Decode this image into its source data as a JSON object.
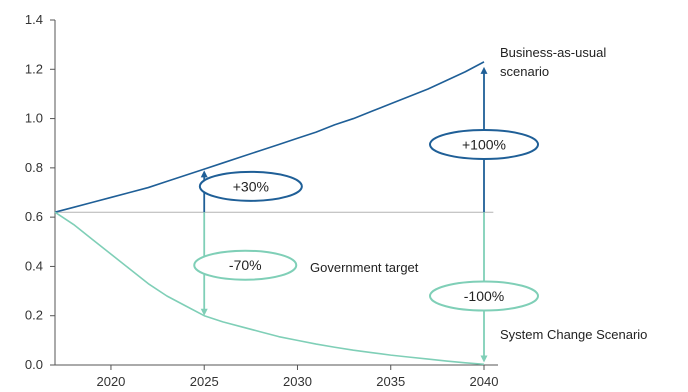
{
  "chart_data": {
    "type": "line",
    "title": "",
    "xlabel": "",
    "ylabel": "",
    "xlim": [
      2017,
      2040
    ],
    "ylim": [
      0,
      1.4
    ],
    "x_ticks": [
      2020,
      2025,
      2030,
      2035,
      2040
    ],
    "y_ticks": [
      0.0,
      0.2,
      0.4,
      0.6,
      0.8,
      1.0,
      1.2,
      1.4
    ],
    "y_tick_labels": [
      "0.0",
      "0.2",
      "0.4",
      "0.6",
      "0.8",
      "1.0",
      "1.2",
      "1.4"
    ],
    "grid": false,
    "baseline": {
      "value": 0.62,
      "x_range": [
        2017,
        2040.5
      ],
      "color": "#b3b3b3"
    },
    "series": [
      {
        "key": "bau",
        "color": "#1f5f97",
        "x": [
          2017,
          2018,
          2019,
          2020,
          2021,
          2022,
          2023,
          2024,
          2025,
          2026,
          2027,
          2028,
          2029,
          2030,
          2031,
          2032,
          2033,
          2034,
          2035,
          2036,
          2037,
          2038,
          2039,
          2040
        ],
        "y": [
          0.62,
          0.64,
          0.66,
          0.68,
          0.7,
          0.72,
          0.745,
          0.77,
          0.795,
          0.82,
          0.845,
          0.87,
          0.895,
          0.92,
          0.945,
          0.975,
          1.0,
          1.03,
          1.06,
          1.09,
          1.12,
          1.155,
          1.19,
          1.23
        ]
      },
      {
        "key": "scs",
        "color": "#7fcfb7",
        "x": [
          2017,
          2018,
          2019,
          2020,
          2021,
          2022,
          2023,
          2024,
          2025,
          2026,
          2027,
          2028,
          2029,
          2030,
          2031,
          2032,
          2033,
          2034,
          2035,
          2036,
          2037,
          2038,
          2039,
          2040
        ],
        "y": [
          0.62,
          0.57,
          0.51,
          0.45,
          0.39,
          0.33,
          0.28,
          0.24,
          0.2,
          0.175,
          0.155,
          0.135,
          0.115,
          0.1,
          0.085,
          0.072,
          0.06,
          0.05,
          0.04,
          0.032,
          0.024,
          0.016,
          0.009,
          0.003
        ]
      }
    ],
    "series_labels": {
      "bau_line1": "Business-as-usual",
      "bau_line2": "scenario",
      "gov": "Government target",
      "scs": "System Change Scenario"
    },
    "arrows": [
      {
        "key": "up2025",
        "x": 2025,
        "from": 0.62,
        "to": 0.79,
        "color": "#1f5f97"
      },
      {
        "key": "down2025",
        "x": 2025,
        "from": 0.62,
        "to": 0.2,
        "color": "#7fcfb7"
      },
      {
        "key": "up2040",
        "x": 2040,
        "from": 0.62,
        "to": 1.21,
        "color": "#1f5f97"
      },
      {
        "key": "down2040",
        "x": 2040,
        "from": 0.62,
        "to": 0.01,
        "color": "#7fcfb7"
      }
    ],
    "callouts": [
      {
        "key": "p30",
        "label": "+30%",
        "x": 2027.5,
        "y": 0.725,
        "color": "#1f5f97"
      },
      {
        "key": "p100",
        "label": "+100%",
        "x": 2040,
        "y": 0.895,
        "color": "#1f5f97"
      },
      {
        "key": "m70",
        "label": "-70%",
        "x": 2027.2,
        "y": 0.405,
        "color": "#7fcfb7"
      },
      {
        "key": "m100",
        "label": "-100%",
        "x": 2040,
        "y": 0.28,
        "color": "#7fcfb7"
      }
    ]
  }
}
